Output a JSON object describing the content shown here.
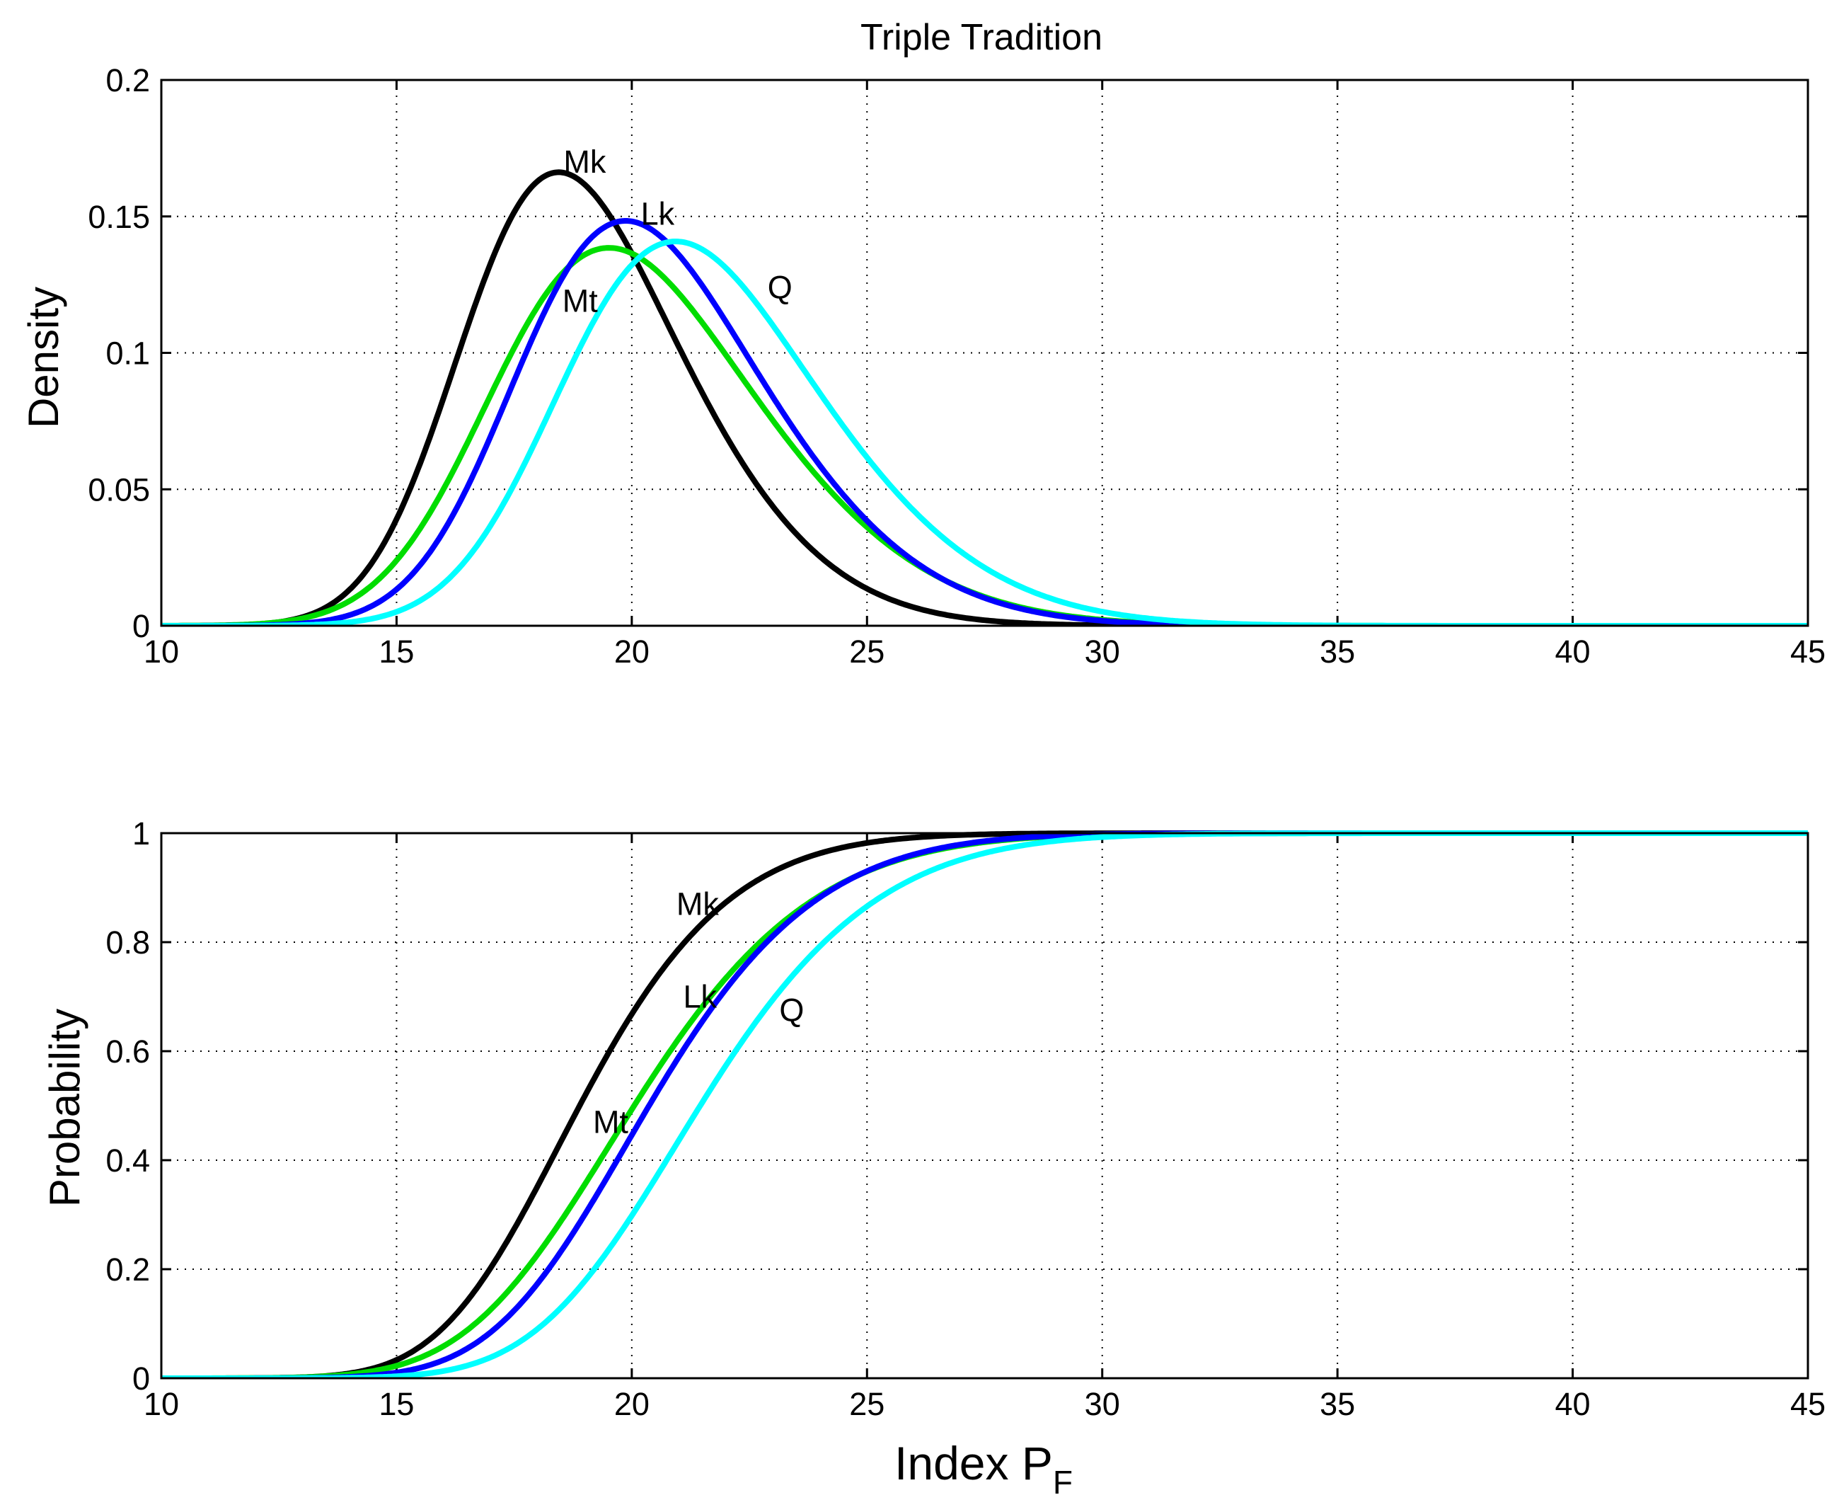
{
  "figure_title": "Triple Tradition",
  "chart_data": [
    {
      "type": "line",
      "panel": "top",
      "title": "Triple Tradition",
      "xlabel": "",
      "ylabel": "Density",
      "xlim": [
        10,
        45
      ],
      "ylim": [
        0,
        0.2
      ],
      "xticks": [
        10,
        15,
        20,
        25,
        30,
        35,
        40,
        45
      ],
      "yticks": [
        0,
        0.05,
        0.1,
        0.15,
        0.2
      ],
      "ytick_labels": [
        "0",
        "0.05",
        "0.1",
        "0.15",
        "0.2"
      ],
      "grid": true,
      "distribution": "density",
      "series": [
        {
          "name": "Mk",
          "color": "#000000",
          "mean": 19.1,
          "sd": 2.5,
          "skew": 2.0
        },
        {
          "name": "Mt",
          "color": "#00dd00",
          "mean": 20.3,
          "sd": 3.0,
          "skew": 2.0
        },
        {
          "name": "Lk",
          "color": "#0000ff",
          "mean": 20.6,
          "sd": 2.8,
          "skew": 2.0
        },
        {
          "name": "Q",
          "color": "#00ffff",
          "mean": 21.7,
          "sd": 2.95,
          "skew": 2.0
        }
      ],
      "annotations": [
        {
          "text": "Mk",
          "x": 19.0,
          "y": 0.166
        },
        {
          "text": "Lk",
          "x": 20.55,
          "y": 0.147
        },
        {
          "text": "Mt",
          "x": 18.9,
          "y": 0.115
        },
        {
          "text": "Q",
          "x": 23.15,
          "y": 0.12
        }
      ]
    },
    {
      "type": "line",
      "panel": "bottom",
      "title": "",
      "xlabel": "Index P",
      "xlabel_subscript": "F",
      "ylabel": "Probability",
      "xlim": [
        10,
        45
      ],
      "ylim": [
        0,
        1
      ],
      "xticks": [
        10,
        15,
        20,
        25,
        30,
        35,
        40,
        45
      ],
      "yticks": [
        0,
        0.2,
        0.4,
        0.6,
        0.8,
        1
      ],
      "ytick_labels": [
        "0",
        "0.2",
        "0.4",
        "0.6",
        "0.8",
        "1"
      ],
      "grid": true,
      "distribution": "cumulative",
      "series": [
        {
          "name": "Mk",
          "color": "#000000",
          "mean": 19.1,
          "sd": 2.5,
          "skew": 2.0
        },
        {
          "name": "Mt",
          "color": "#00dd00",
          "mean": 20.3,
          "sd": 3.0,
          "skew": 2.0
        },
        {
          "name": "Lk",
          "color": "#0000ff",
          "mean": 20.6,
          "sd": 2.8,
          "skew": 2.0
        },
        {
          "name": "Q",
          "color": "#00ffff",
          "mean": 21.7,
          "sd": 2.95,
          "skew": 2.0
        }
      ],
      "annotations": [
        {
          "text": "Mk",
          "x": 21.4,
          "y": 0.85
        },
        {
          "text": "Lk",
          "x": 21.45,
          "y": 0.68
        },
        {
          "text": "Q",
          "x": 23.4,
          "y": 0.655
        },
        {
          "text": "Mt",
          "x": 19.55,
          "y": 0.45
        }
      ]
    }
  ]
}
